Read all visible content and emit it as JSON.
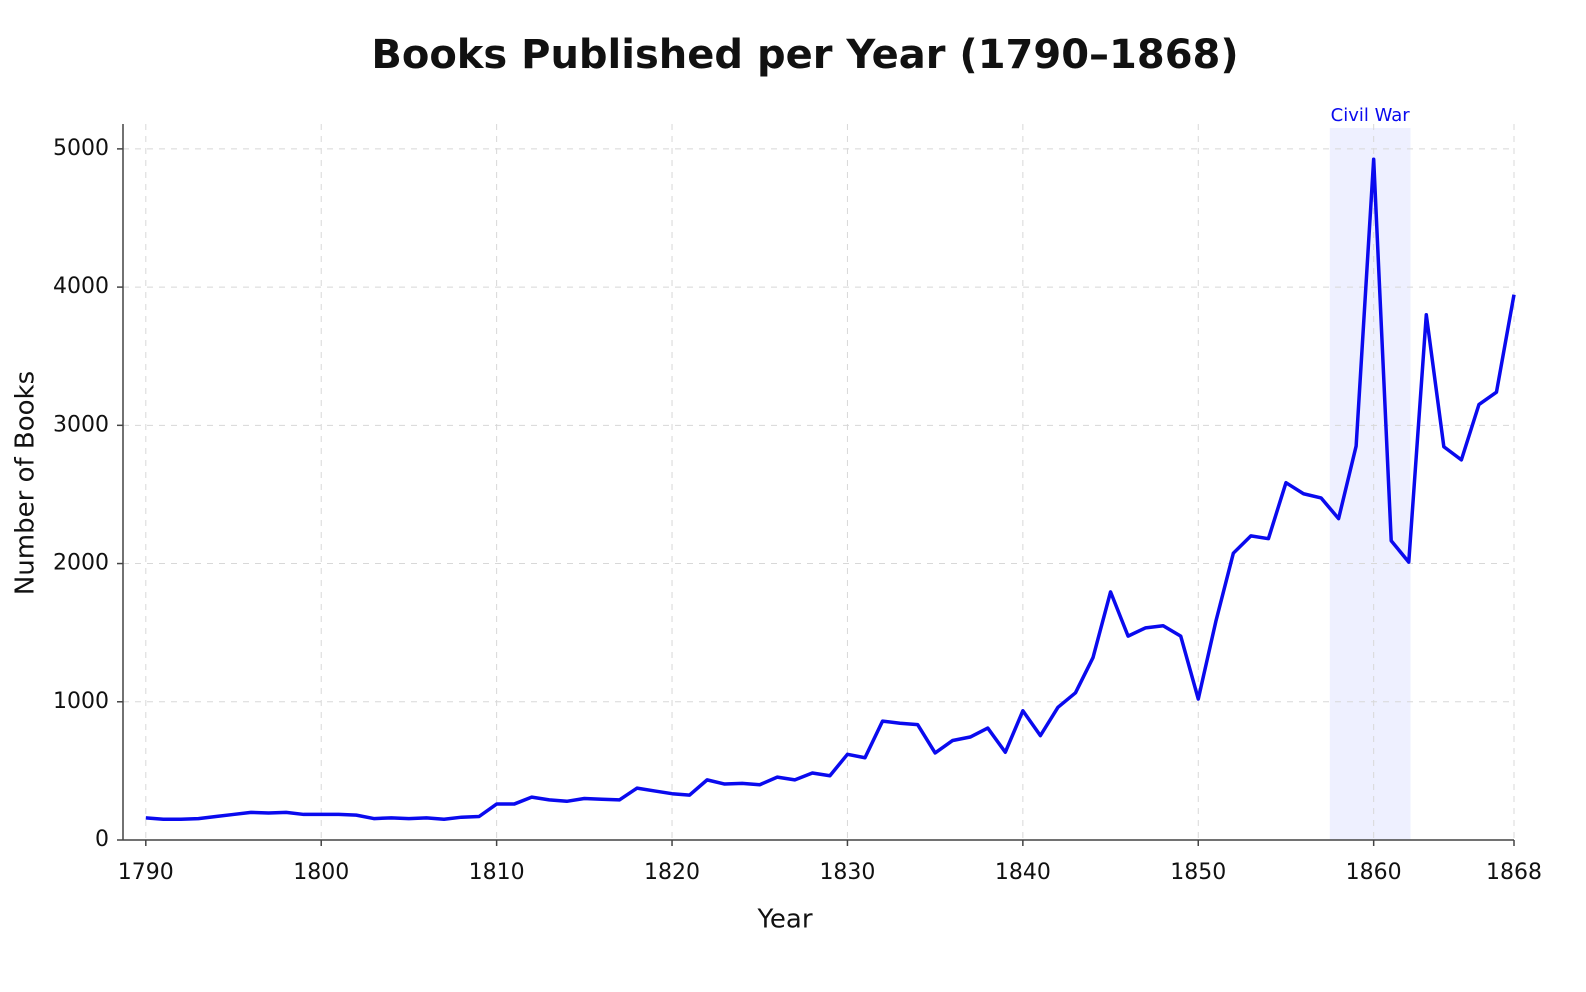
{
  "chart_data": {
    "type": "line",
    "title": "Books Published per Year (1790–1868)",
    "x_label": "Year",
    "y_label": "Number of Books",
    "x": [
      1790,
      1791,
      1792,
      1793,
      1794,
      1795,
      1796,
      1797,
      1798,
      1799,
      1800,
      1801,
      1802,
      1803,
      1804,
      1805,
      1806,
      1807,
      1808,
      1809,
      1810,
      1811,
      1812,
      1813,
      1814,
      1815,
      1816,
      1817,
      1818,
      1819,
      1820,
      1821,
      1822,
      1823,
      1824,
      1825,
      1826,
      1827,
      1828,
      1829,
      1830,
      1831,
      1832,
      1833,
      1834,
      1835,
      1836,
      1837,
      1838,
      1839,
      1840,
      1841,
      1842,
      1843,
      1844,
      1845,
      1846,
      1847,
      1848,
      1849,
      1850,
      1851,
      1852,
      1853,
      1854,
      1855,
      1856,
      1857,
      1858,
      1859,
      1860,
      1861,
      1862,
      1863,
      1864,
      1865,
      1866,
      1867,
      1868
    ],
    "series": [
      {
        "name": "Books",
        "color": "#0a0aee",
        "values": [
          160,
          150,
          150,
          155,
          170,
          185,
          200,
          195,
          200,
          185,
          185,
          185,
          180,
          155,
          160,
          155,
          160,
          150,
          165,
          170,
          260,
          260,
          310,
          290,
          280,
          300,
          295,
          290,
          375,
          355,
          335,
          325,
          435,
          405,
          410,
          400,
          455,
          435,
          485,
          465,
          620,
          595,
          860,
          845,
          835,
          630,
          720,
          745,
          810,
          635,
          935,
          755,
          960,
          1065,
          1320,
          1795,
          1475,
          1535,
          1550,
          1475,
          1020,
          1580,
          2075,
          2200,
          2180,
          2585,
          2505,
          2475,
          2325,
          2850,
          4925,
          2165,
          2010,
          3800,
          2845,
          2750,
          3150,
          3240,
          3945
        ]
      }
    ],
    "xlim": [
      1788.7,
      1868
    ],
    "xticks": [
      1790,
      1800,
      1810,
      1820,
      1830,
      1840,
      1850,
      1860,
      1868
    ],
    "ylim": [
      0,
      5180
    ],
    "yticks": [
      0,
      1000,
      2000,
      3000,
      4000,
      5000
    ],
    "grid": true,
    "annotations": [
      {
        "text": "Civil War",
        "span": [
          1857.5,
          1862.1
        ],
        "color": "#0a0aee",
        "fill": "#eef0ff"
      }
    ]
  }
}
